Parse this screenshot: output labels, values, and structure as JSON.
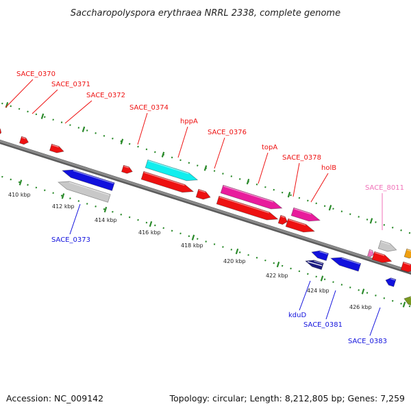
{
  "title": "Saccharopolyspora erythraea NRRL 2338, complete genome",
  "footer": {
    "accession": "Accession: NC_009142",
    "topology": "Topology: circular; Length: 8,212,805 bp; Genes: 7,259"
  },
  "colors": {
    "red": "#ee1111",
    "cyan": "#11eeee",
    "magenta": "#e81c9c",
    "blue": "#1111dd",
    "gray": "#c8c8c8",
    "pink": "#f070b8",
    "orange": "#f0a010",
    "olive": "#7a9a20",
    "navy": "#1a1a80",
    "backbone": "#8a8a8a",
    "tick": "#2a8a2a"
  },
  "ruler_labels": [
    "410 kbp",
    "412 kbp",
    "414 kbp",
    "416 kbp",
    "418 kbp",
    "420 kbp",
    "422 kbp",
    "424 kbp",
    "426 kbp"
  ],
  "gene_labels_top": [
    {
      "label": "SACE_0370",
      "color": "red"
    },
    {
      "label": "SACE_0371",
      "color": "red"
    },
    {
      "label": "SACE_0372",
      "color": "red"
    },
    {
      "label": "SACE_0374",
      "color": "red"
    },
    {
      "label": "hppA",
      "color": "red"
    },
    {
      "label": "SACE_0376",
      "color": "red"
    },
    {
      "label": "topA",
      "color": "red"
    },
    {
      "label": "SACE_0378",
      "color": "red"
    },
    {
      "label": "holB",
      "color": "red"
    },
    {
      "label": "SACE_8011",
      "color": "pink"
    }
  ],
  "gene_labels_bottom": [
    {
      "label": "SACE_0373",
      "color": "blue"
    },
    {
      "label": "kduD",
      "color": "blue"
    },
    {
      "label": "SACE_0381",
      "color": "blue"
    },
    {
      "label": "SACE_0383",
      "color": "blue"
    }
  ]
}
